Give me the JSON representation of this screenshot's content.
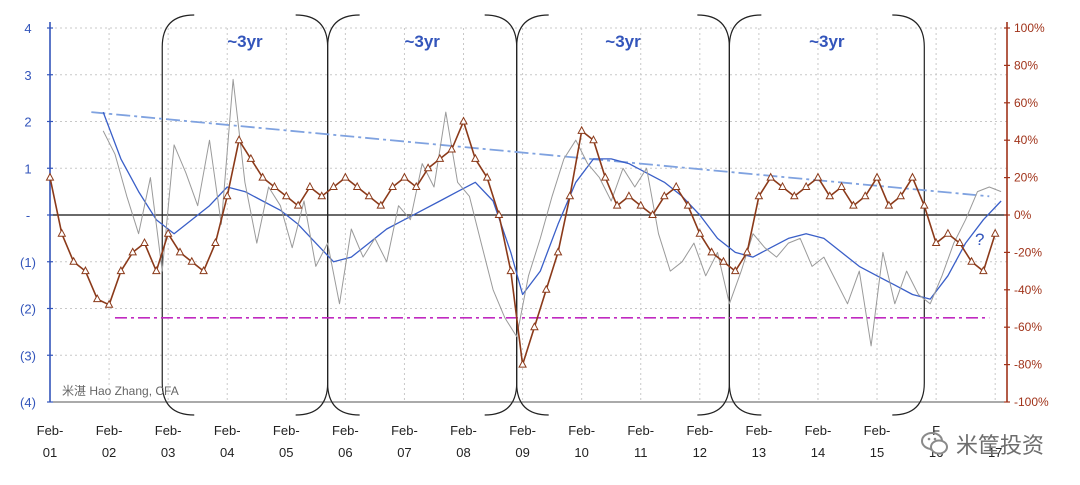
{
  "chart_data": {
    "type": "line",
    "colors": {
      "left_axis": "#3355bb",
      "right_axis": "#a0331a",
      "blue_line": "#3a5fc8",
      "grey_line": "#9a9a9a",
      "brown_line": "#8b3a1a",
      "trend": "#7fa2e0",
      "support": "#c02ac0",
      "grid": "#c8c8c8"
    },
    "left_axis": {
      "ylim": [
        -4,
        4
      ],
      "ticks": [
        "4",
        "3",
        "2",
        "1",
        "-",
        "(1)",
        "(2)",
        "(3)",
        "(4)"
      ],
      "tick_values": [
        4,
        3,
        2,
        1,
        0,
        -1,
        -2,
        -3,
        -4
      ]
    },
    "right_axis": {
      "ylim": [
        -100,
        100
      ],
      "ticks": [
        "100%",
        "80%",
        "60%",
        "40%",
        "20%",
        "0%",
        "-20%",
        "-40%",
        "-60%",
        "-80%",
        "-100%"
      ],
      "tick_values": [
        100,
        80,
        60,
        40,
        20,
        0,
        -20,
        -40,
        -60,
        -80,
        -100
      ]
    },
    "x_axis": {
      "ticks": [
        "Feb-\n01",
        "Feb-\n02",
        "Feb-\n03",
        "Feb-\n04",
        "Feb-\n05",
        "Feb-\n06",
        "Feb-\n07",
        "Feb-\n08",
        "Feb-\n09",
        "Feb-\n10",
        "Feb-\n11",
        "Feb-\n12",
        "Feb-\n13",
        "Feb-\n14",
        "Feb-\n15",
        "F\n16",
        "\n17"
      ],
      "range": [
        2001.1,
        2017.3
      ]
    },
    "cycle_labels": [
      "~3yr",
      "~3yr",
      "~3yr",
      "~3yr"
    ],
    "cycles": [
      [
        2003.0,
        2005.8
      ],
      [
        2005.8,
        2009.0
      ],
      [
        2009.0,
        2012.6
      ],
      [
        2012.6,
        2015.9
      ]
    ],
    "question_mark": "?",
    "author_credit": "米湛 Hao Zhang, CFA",
    "trend_line": {
      "from": [
        2001.8,
        2.2
      ],
      "to": [
        2017.0,
        0.4
      ]
    },
    "support_line": {
      "value": -2.2,
      "from": 2002.2,
      "to": 2017.0
    },
    "series": [
      {
        "axis": "left",
        "style": "blue",
        "x": [
          2002.0,
          2002.3,
          2002.6,
          2002.9,
          2003.2,
          2003.5,
          2003.8,
          2004.1,
          2004.4,
          2004.7,
          2005.0,
          2005.3,
          2005.6,
          2005.9,
          2006.2,
          2006.5,
          2006.8,
          2007.1,
          2007.4,
          2007.7,
          2008.0,
          2008.3,
          2008.6,
          2008.9,
          2009.1,
          2009.4,
          2009.7,
          2010.0,
          2010.3,
          2010.6,
          2010.9,
          2011.2,
          2011.5,
          2011.8,
          2012.1,
          2012.4,
          2012.7,
          2013.0,
          2013.3,
          2013.6,
          2013.9,
          2014.2,
          2014.5,
          2014.8,
          2015.1,
          2015.4,
          2015.7,
          2016.0,
          2016.3,
          2016.6,
          2016.9,
          2017.2
        ],
        "values": [
          2.2,
          1.2,
          0.5,
          -0.1,
          -0.4,
          -0.1,
          0.2,
          0.6,
          0.5,
          0.3,
          0.1,
          -0.2,
          -0.6,
          -1.0,
          -0.9,
          -0.6,
          -0.3,
          -0.1,
          0.1,
          0.3,
          0.5,
          0.7,
          0.3,
          -0.8,
          -1.7,
          -1.2,
          -0.2,
          0.7,
          1.2,
          1.2,
          1.1,
          0.9,
          0.7,
          0.4,
          0.0,
          -0.5,
          -0.8,
          -0.9,
          -0.7,
          -0.5,
          -0.4,
          -0.5,
          -0.8,
          -1.1,
          -1.3,
          -1.5,
          -1.7,
          -1.8,
          -1.3,
          -0.6,
          -0.1,
          0.3
        ]
      },
      {
        "axis": "left",
        "style": "grey",
        "x": [
          2002.0,
          2002.2,
          2002.4,
          2002.6,
          2002.8,
          2003.0,
          2003.2,
          2003.4,
          2003.6,
          2003.8,
          2004.0,
          2004.2,
          2004.4,
          2004.6,
          2004.8,
          2005.0,
          2005.2,
          2005.4,
          2005.6,
          2005.8,
          2006.0,
          2006.2,
          2006.4,
          2006.6,
          2006.8,
          2007.0,
          2007.2,
          2007.4,
          2007.6,
          2007.8,
          2008.0,
          2008.2,
          2008.4,
          2008.6,
          2008.8,
          2009.0,
          2009.2,
          2009.4,
          2009.6,
          2009.8,
          2010.0,
          2010.2,
          2010.4,
          2010.6,
          2010.8,
          2011.0,
          2011.2,
          2011.4,
          2011.6,
          2011.8,
          2012.0,
          2012.2,
          2012.4,
          2012.6,
          2012.8,
          2013.0,
          2013.2,
          2013.4,
          2013.6,
          2013.8,
          2014.0,
          2014.2,
          2014.4,
          2014.6,
          2014.8,
          2015.0,
          2015.2,
          2015.4,
          2015.6,
          2015.8,
          2016.0,
          2016.2,
          2016.4,
          2016.6,
          2016.8,
          2017.0,
          2017.2
        ],
        "values": [
          1.8,
          1.3,
          0.4,
          -0.4,
          0.8,
          -1.2,
          1.5,
          0.9,
          0.2,
          1.6,
          -0.2,
          2.9,
          0.7,
          -0.6,
          0.6,
          0.2,
          -0.7,
          0.3,
          -1.1,
          -0.6,
          -1.9,
          -0.3,
          -0.9,
          -0.5,
          -1.0,
          0.2,
          -0.1,
          1.1,
          0.6,
          2.2,
          0.7,
          0.4,
          -0.6,
          -1.6,
          -2.2,
          -2.6,
          -1.3,
          -0.5,
          0.4,
          1.2,
          1.6,
          1.1,
          0.8,
          0.3,
          1.0,
          0.6,
          1.0,
          -0.4,
          -1.2,
          -1.0,
          -0.6,
          -1.3,
          -0.8,
          -1.9,
          -1.2,
          -0.4,
          -0.7,
          -0.9,
          -0.6,
          -0.5,
          -1.1,
          -0.9,
          -1.4,
          -1.9,
          -1.2,
          -2.8,
          -0.8,
          -1.9,
          -1.2,
          -1.7,
          -1.9,
          -1.3,
          -0.6,
          -0.1,
          0.5,
          0.6,
          0.5
        ]
      },
      {
        "axis": "right",
        "style": "brown",
        "x": [
          2001.1,
          2001.3,
          2001.5,
          2001.7,
          2001.9,
          2002.1,
          2002.3,
          2002.5,
          2002.7,
          2002.9,
          2003.1,
          2003.3,
          2003.5,
          2003.7,
          2003.9,
          2004.1,
          2004.3,
          2004.5,
          2004.7,
          2004.9,
          2005.1,
          2005.3,
          2005.5,
          2005.7,
          2005.9,
          2006.1,
          2006.3,
          2006.5,
          2006.7,
          2006.9,
          2007.1,
          2007.3,
          2007.5,
          2007.7,
          2007.9,
          2008.1,
          2008.3,
          2008.5,
          2008.7,
          2008.9,
          2009.1,
          2009.3,
          2009.5,
          2009.7,
          2009.9,
          2010.1,
          2010.3,
          2010.5,
          2010.7,
          2010.9,
          2011.1,
          2011.3,
          2011.5,
          2011.7,
          2011.9,
          2012.1,
          2012.3,
          2012.5,
          2012.7,
          2012.9,
          2013.1,
          2013.3,
          2013.5,
          2013.7,
          2013.9,
          2014.1,
          2014.3,
          2014.5,
          2014.7,
          2014.9,
          2015.1,
          2015.3,
          2015.5,
          2015.7,
          2015.9,
          2016.1,
          2016.3,
          2016.5,
          2016.7,
          2016.9,
          2017.1
        ],
        "values": [
          20,
          -10,
          -25,
          -30,
          -45,
          -48,
          -30,
          -20,
          -15,
          -30,
          -10,
          -20,
          -25,
          -30,
          -15,
          10,
          40,
          30,
          20,
          15,
          10,
          5,
          15,
          10,
          15,
          20,
          15,
          10,
          5,
          15,
          20,
          15,
          25,
          30,
          35,
          50,
          30,
          20,
          0,
          -30,
          -80,
          -60,
          -40,
          -20,
          10,
          45,
          40,
          20,
          5,
          10,
          5,
          0,
          10,
          15,
          5,
          -10,
          -20,
          -25,
          -30,
          -20,
          10,
          20,
          15,
          10,
          15,
          20,
          10,
          15,
          5,
          10,
          20,
          5,
          10,
          20,
          5,
          -15,
          -10,
          -15,
          -25,
          -30,
          -10
        ]
      }
    ]
  }
}
